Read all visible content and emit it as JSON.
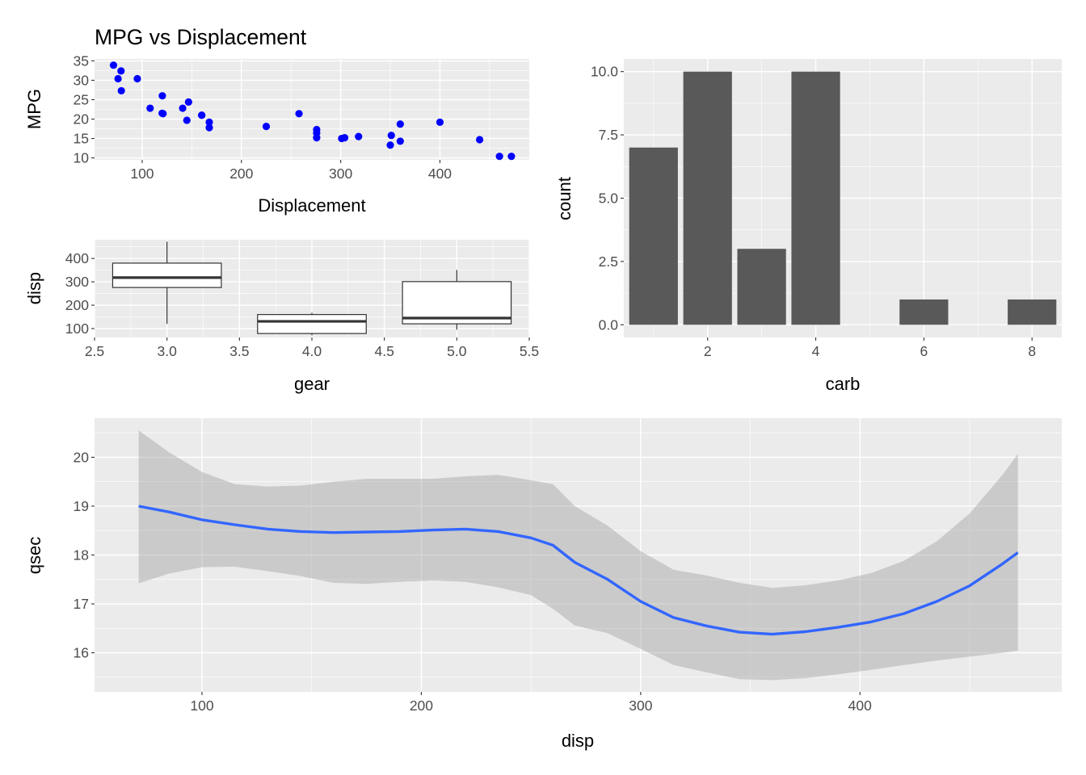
{
  "chart_data": [
    {
      "type": "scatter",
      "title": "MPG vs Displacement",
      "xlabel": "Displacement",
      "ylabel": "MPG",
      "xlim": [
        52,
        490
      ],
      "ylim": [
        9.5,
        35.5
      ],
      "xticks": [
        100,
        200,
        300,
        400
      ],
      "yticks": [
        10,
        15,
        20,
        25,
        30,
        35
      ],
      "grid": true,
      "point_color": "#0000ff",
      "points": [
        {
          "x": 160,
          "y": 21.0
        },
        {
          "x": 160,
          "y": 21.0
        },
        {
          "x": 108,
          "y": 22.8
        },
        {
          "x": 258,
          "y": 21.4
        },
        {
          "x": 360,
          "y": 18.7
        },
        {
          "x": 225,
          "y": 18.1
        },
        {
          "x": 360,
          "y": 14.3
        },
        {
          "x": 146.7,
          "y": 24.4
        },
        {
          "x": 140.8,
          "y": 22.8
        },
        {
          "x": 167.6,
          "y": 19.2
        },
        {
          "x": 167.6,
          "y": 17.8
        },
        {
          "x": 275.8,
          "y": 16.4
        },
        {
          "x": 275.8,
          "y": 17.3
        },
        {
          "x": 275.8,
          "y": 15.2
        },
        {
          "x": 472,
          "y": 10.4
        },
        {
          "x": 460,
          "y": 10.4
        },
        {
          "x": 440,
          "y": 14.7
        },
        {
          "x": 78.7,
          "y": 32.4
        },
        {
          "x": 75.7,
          "y": 30.4
        },
        {
          "x": 71.1,
          "y": 33.9
        },
        {
          "x": 120.1,
          "y": 21.5
        },
        {
          "x": 318,
          "y": 15.5
        },
        {
          "x": 304,
          "y": 15.2
        },
        {
          "x": 350,
          "y": 13.3
        },
        {
          "x": 400,
          "y": 19.2
        },
        {
          "x": 79,
          "y": 27.3
        },
        {
          "x": 120.3,
          "y": 26.0
        },
        {
          "x": 95.1,
          "y": 30.4
        },
        {
          "x": 351,
          "y": 15.8
        },
        {
          "x": 145,
          "y": 19.7
        },
        {
          "x": 301,
          "y": 15.0
        },
        {
          "x": 121,
          "y": 21.4
        }
      ]
    },
    {
      "type": "boxplot",
      "title": "",
      "xlabel": "gear",
      "ylabel": "disp",
      "xlim": [
        2.5,
        5.5
      ],
      "ylim": [
        62,
        480
      ],
      "xticks": [
        2.5,
        3.0,
        3.5,
        4.0,
        4.5,
        5.0,
        5.5
      ],
      "xtick_labels": [
        "2.5",
        "3.0",
        "3.5",
        "4.0",
        "4.5",
        "5.0",
        "5.5"
      ],
      "yticks": [
        100,
        200,
        300,
        400
      ],
      "grid": true,
      "boxes": [
        {
          "x": 3,
          "min": 120.1,
          "q1": 275.8,
          "median": 318,
          "q3": 380,
          "max": 472
        },
        {
          "x": 4,
          "min": 71.1,
          "q1": 78.8,
          "median": 130.9,
          "q3": 160,
          "max": 167.6
        },
        {
          "x": 5,
          "min": 95.1,
          "q1": 120.3,
          "median": 145,
          "q3": 301,
          "max": 351
        }
      ]
    },
    {
      "type": "bar",
      "title": "",
      "xlabel": "carb",
      "ylabel": "count",
      "xlim": [
        0.45,
        8.55
      ],
      "ylim": [
        -0.5,
        10.5
      ],
      "xticks": [
        2,
        4,
        6,
        8
      ],
      "yticks": [
        0,
        2.5,
        5,
        7.5,
        10
      ],
      "ytick_labels": [
        "0.0",
        "2.5",
        "5.0",
        "7.5",
        "10.0"
      ],
      "grid": true,
      "bar_color": "#595959",
      "categories": [
        1,
        2,
        3,
        4,
        6,
        8
      ],
      "values": [
        7,
        10,
        3,
        10,
        1,
        1
      ]
    },
    {
      "type": "line",
      "title": "",
      "xlabel": "disp",
      "ylabel": "qsec",
      "xlim": [
        51,
        492
      ],
      "ylim": [
        15.2,
        20.8
      ],
      "xticks": [
        100,
        200,
        300,
        400
      ],
      "yticks": [
        16,
        17,
        18,
        19,
        20
      ],
      "grid": true,
      "line_color": "#3366ff",
      "band_color": "#999999",
      "smooth": [
        {
          "x": 71.1,
          "y": 19.0,
          "lo": 17.42,
          "hi": 20.55
        },
        {
          "x": 85,
          "y": 18.88,
          "lo": 17.62,
          "hi": 20.1
        },
        {
          "x": 100,
          "y": 18.72,
          "lo": 17.75,
          "hi": 19.7
        },
        {
          "x": 115,
          "y": 18.62,
          "lo": 17.76,
          "hi": 19.45
        },
        {
          "x": 130,
          "y": 18.53,
          "lo": 17.67,
          "hi": 19.4
        },
        {
          "x": 145,
          "y": 18.48,
          "lo": 17.57,
          "hi": 19.42
        },
        {
          "x": 160,
          "y": 18.46,
          "lo": 17.43,
          "hi": 19.5
        },
        {
          "x": 175,
          "y": 18.47,
          "lo": 17.41,
          "hi": 19.56
        },
        {
          "x": 190,
          "y": 18.48,
          "lo": 17.45,
          "hi": 19.56
        },
        {
          "x": 205,
          "y": 18.51,
          "lo": 17.48,
          "hi": 19.56
        },
        {
          "x": 220,
          "y": 18.53,
          "lo": 17.45,
          "hi": 19.61
        },
        {
          "x": 235,
          "y": 18.48,
          "lo": 17.34,
          "hi": 19.64
        },
        {
          "x": 250,
          "y": 18.35,
          "lo": 17.18,
          "hi": 19.53
        },
        {
          "x": 260,
          "y": 18.2,
          "lo": 16.9,
          "hi": 19.45
        },
        {
          "x": 270,
          "y": 17.85,
          "lo": 16.56,
          "hi": 19.0
        },
        {
          "x": 285,
          "y": 17.5,
          "lo": 16.4,
          "hi": 18.6
        },
        {
          "x": 300,
          "y": 17.05,
          "lo": 16.08,
          "hi": 18.08
        },
        {
          "x": 315,
          "y": 16.72,
          "lo": 15.75,
          "hi": 17.7
        },
        {
          "x": 330,
          "y": 16.55,
          "lo": 15.6,
          "hi": 17.58
        },
        {
          "x": 345,
          "y": 16.42,
          "lo": 15.46,
          "hi": 17.43
        },
        {
          "x": 360,
          "y": 16.38,
          "lo": 15.44,
          "hi": 17.33
        },
        {
          "x": 375,
          "y": 16.43,
          "lo": 15.48,
          "hi": 17.38
        },
        {
          "x": 390,
          "y": 16.52,
          "lo": 15.56,
          "hi": 17.48
        },
        {
          "x": 405,
          "y": 16.63,
          "lo": 15.65,
          "hi": 17.63
        },
        {
          "x": 420,
          "y": 16.8,
          "lo": 15.75,
          "hi": 17.88
        },
        {
          "x": 435,
          "y": 17.05,
          "lo": 15.84,
          "hi": 18.28
        },
        {
          "x": 450,
          "y": 17.37,
          "lo": 15.92,
          "hi": 18.85
        },
        {
          "x": 465,
          "y": 17.82,
          "lo": 16.0,
          "hi": 19.64
        },
        {
          "x": 472,
          "y": 18.05,
          "lo": 16.04,
          "hi": 20.07
        }
      ]
    }
  ]
}
